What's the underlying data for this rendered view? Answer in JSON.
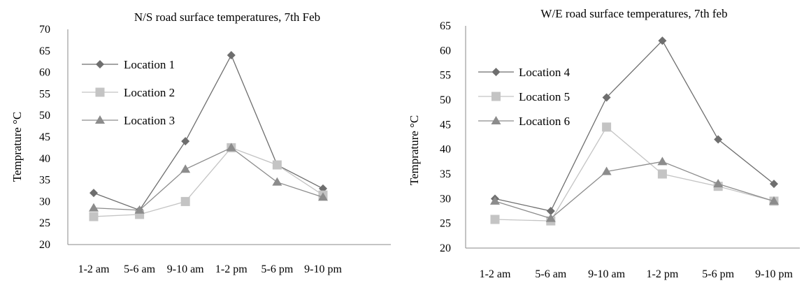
{
  "chart_data": [
    {
      "type": "line",
      "title": "N/S road surface temperatures, 7th Feb",
      "xlabel": "",
      "ylabel": "Temprature °C",
      "ylim": [
        20,
        70
      ],
      "yticks": [
        "20",
        "25",
        "30",
        "35",
        "40",
        "45",
        "50",
        "55",
        "60",
        "65",
        "70"
      ],
      "categories": [
        "1-2 am",
        "5-6 am",
        "9-10 am",
        "1-2 pm",
        "5-6 pm",
        "9-10 pm"
      ],
      "legend_position": "top-left",
      "grid": false,
      "series": [
        {
          "name": "Location 1",
          "marker": "diamond",
          "color": "#6e6e6e",
          "values": [
            32,
            28,
            44,
            64,
            38.5,
            33
          ]
        },
        {
          "name": "Location 2",
          "marker": "square",
          "color": "#c4c4c4",
          "values": [
            26.5,
            27,
            30,
            42.5,
            38.5,
            31.5
          ]
        },
        {
          "name": "Location 3",
          "marker": "triangle",
          "color": "#8c8c8c",
          "values": [
            28.5,
            28,
            37.5,
            42.5,
            34.5,
            31
          ]
        }
      ]
    },
    {
      "type": "line",
      "title": "W/E road surface temperatures, 7th feb",
      "xlabel": "",
      "ylabel": "Temprature °C",
      "ylim": [
        20,
        65
      ],
      "yticks": [
        "20",
        "25",
        "30",
        "35",
        "40",
        "45",
        "50",
        "55",
        "60",
        "65"
      ],
      "categories": [
        "1-2 am",
        "5-6 am",
        "9-10 am",
        "1-2 pm",
        "5-6 pm",
        "9-10 pm"
      ],
      "legend_position": "top-left",
      "grid": false,
      "series": [
        {
          "name": "Location 4",
          "marker": "diamond",
          "color": "#6e6e6e",
          "values": [
            30,
            27.5,
            50.5,
            62,
            42,
            33
          ]
        },
        {
          "name": "Location 5",
          "marker": "square",
          "color": "#c4c4c4",
          "values": [
            25.8,
            25.5,
            44.5,
            35,
            32.5,
            29.5
          ]
        },
        {
          "name": "Location 6",
          "marker": "triangle",
          "color": "#8c8c8c",
          "values": [
            29.5,
            26,
            35.5,
            37.5,
            33,
            29.5
          ]
        }
      ]
    }
  ]
}
